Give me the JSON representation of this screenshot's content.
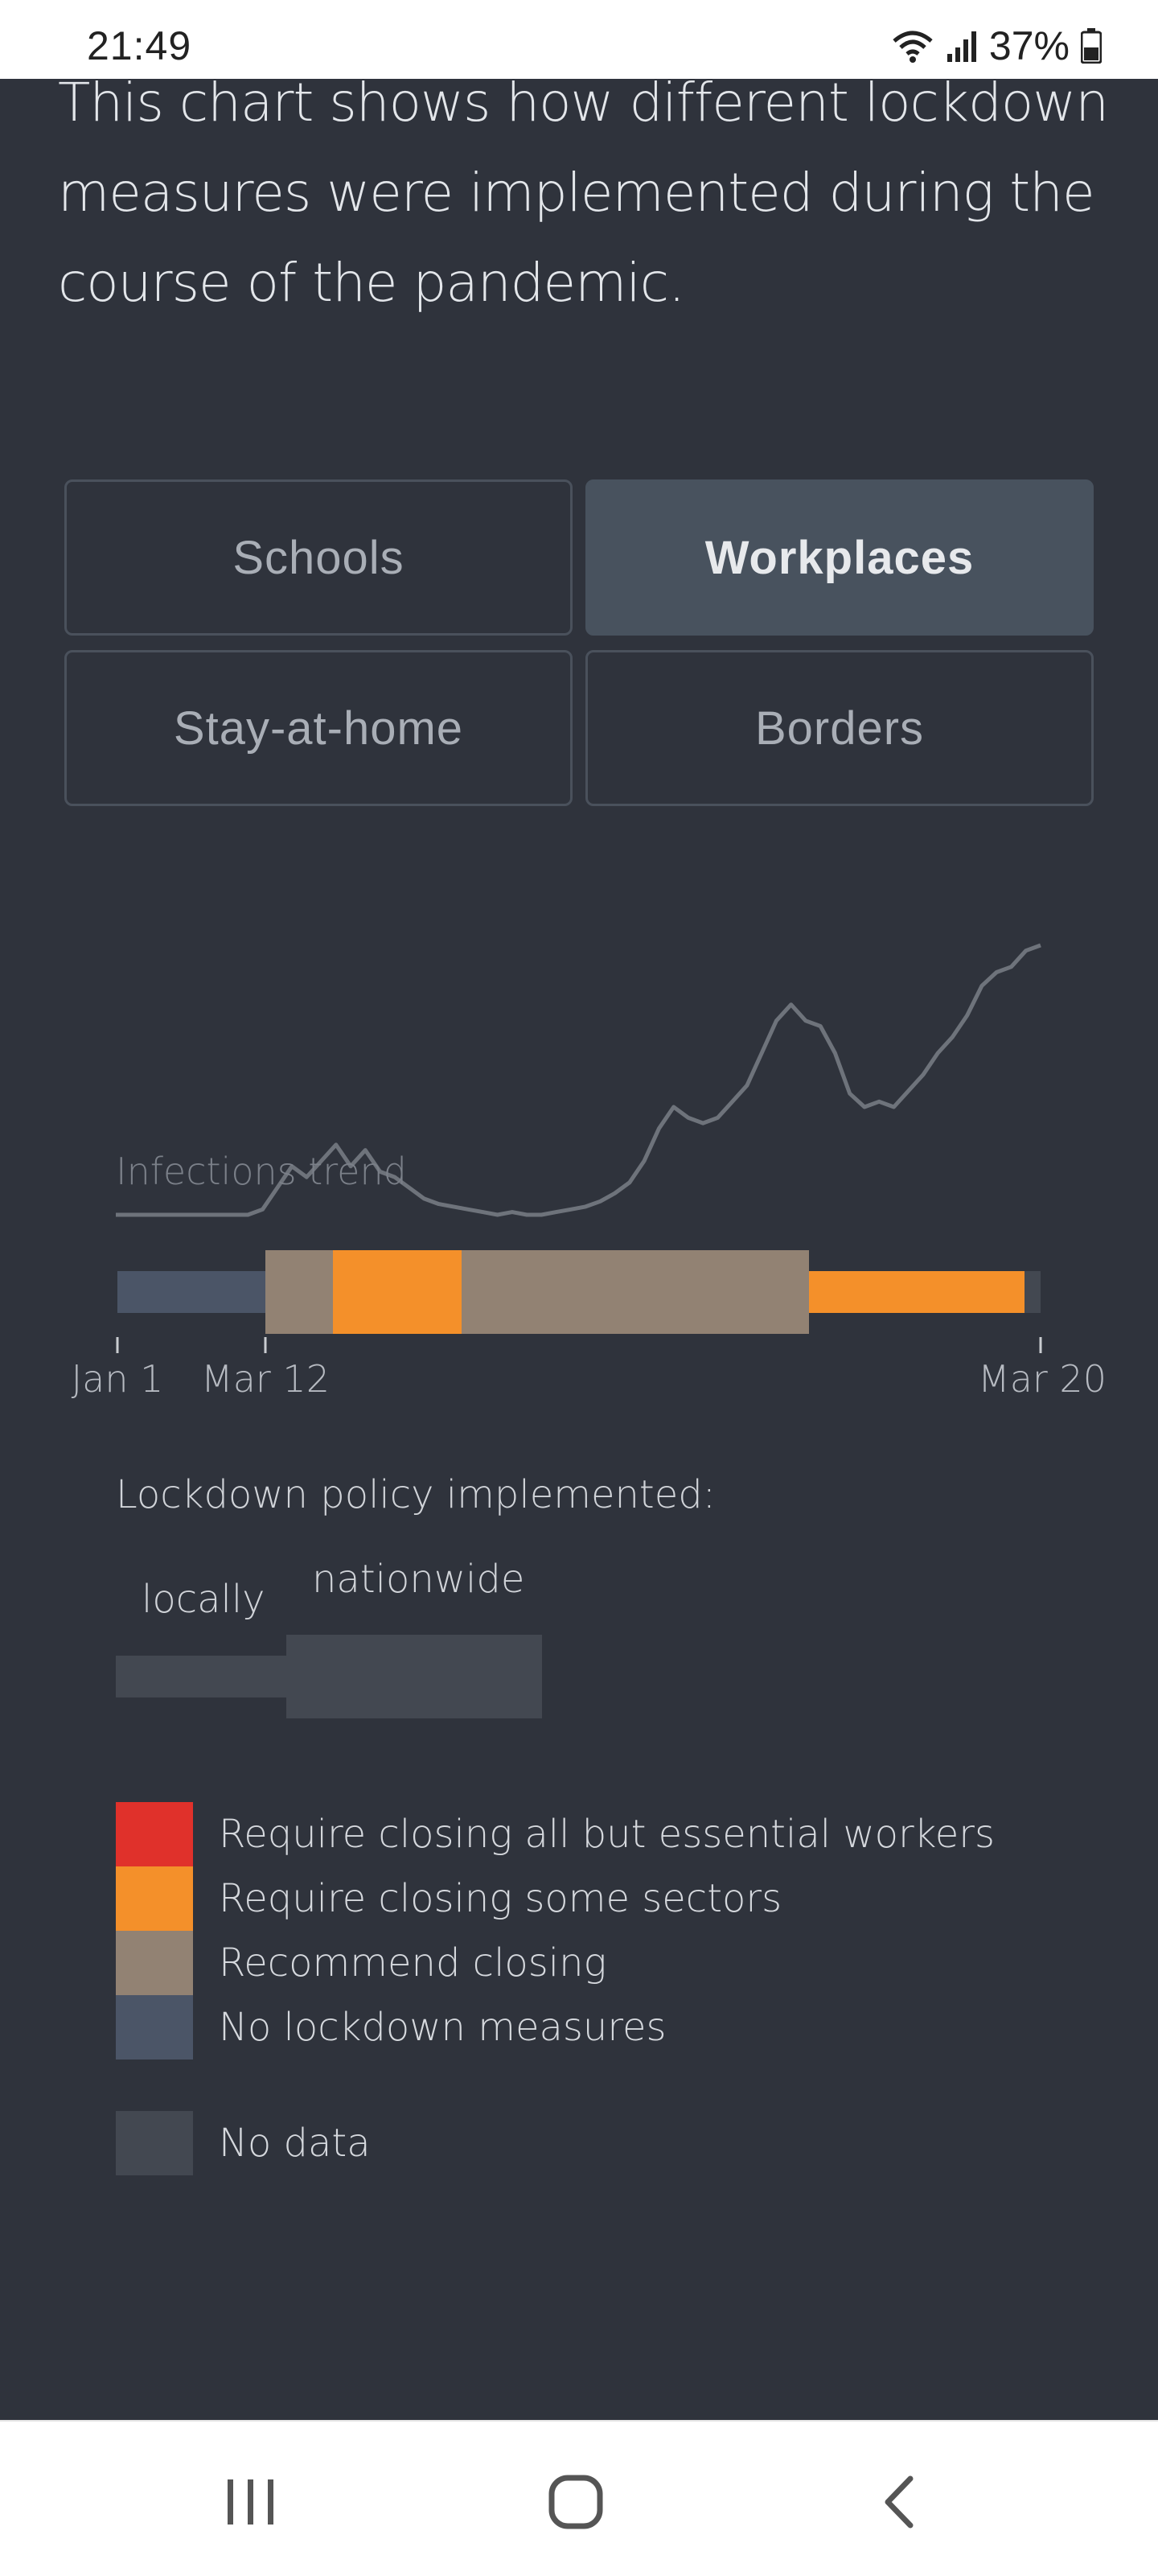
{
  "status_bar": {
    "time": "21:49",
    "battery": "37%"
  },
  "intro": {
    "lines": [
      "This chart shows how different lockdown",
      "measures were implemented during the",
      "course of the pandemic."
    ]
  },
  "tabs": [
    {
      "label": "Schools",
      "active": false
    },
    {
      "label": "Workplaces",
      "active": true
    },
    {
      "label": "Stay-at-home",
      "active": false
    },
    {
      "label": "Borders",
      "active": false
    }
  ],
  "legend": {
    "title": "Lockdown policy implemented:",
    "locally": "locally",
    "nationwide": "nationwide",
    "items": [
      {
        "label": "Require closing all but essential workers",
        "color": "#e0312b"
      },
      {
        "label": "Require closing some sectors",
        "color": "#f4902a"
      },
      {
        "label": "Recommend closing",
        "color": "#928273"
      },
      {
        "label": "No lockdown measures",
        "color": "#4b5567"
      }
    ],
    "no_data": {
      "label": "No data",
      "color": "#434851"
    }
  },
  "chart_data": {
    "type": "area",
    "trend_label": "Infections trend",
    "x_ticks": [
      "Jan 1",
      "Mar 12",
      "Mar 20"
    ],
    "policy_segments": [
      {
        "level": "No lockdown measures",
        "scope": "locally",
        "color": "#4b5567"
      },
      {
        "level": "Recommend closing",
        "scope": "nationwide",
        "color": "#928273"
      },
      {
        "level": "Require closing some sectors",
        "scope": "nationwide",
        "color": "#f4902a"
      },
      {
        "level": "Recommend closing",
        "scope": "nationwide",
        "color": "#928273"
      },
      {
        "level": "Require closing some sectors",
        "scope": "locally",
        "color": "#f4902a"
      },
      {
        "level": "No data",
        "scope": "locally",
        "color": "#434851"
      }
    ],
    "trend_values": [
      0,
      0,
      0,
      0,
      0,
      0,
      0,
      0,
      0,
      0,
      0.02,
      0.1,
      0.18,
      0.14,
      0.2,
      0.26,
      0.18,
      0.24,
      0.16,
      0.14,
      0.1,
      0.06,
      0.04,
      0.03,
      0.02,
      0.01,
      0.0,
      0.01,
      0.0,
      0.0,
      0.01,
      0.02,
      0.03,
      0.05,
      0.08,
      0.12,
      0.2,
      0.32,
      0.4,
      0.36,
      0.34,
      0.36,
      0.42,
      0.48,
      0.6,
      0.72,
      0.78,
      0.72,
      0.7,
      0.6,
      0.45,
      0.4,
      0.42,
      0.4,
      0.46,
      0.52,
      0.6,
      0.66,
      0.74,
      0.85,
      0.9,
      0.92,
      0.98,
      1.0
    ]
  }
}
